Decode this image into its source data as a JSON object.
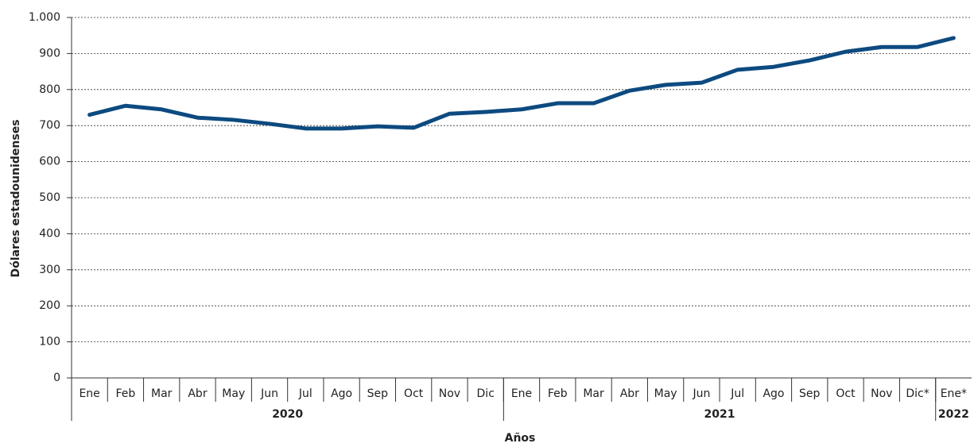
{
  "chart_data": {
    "type": "line",
    "y_label": "Dólares estadounidenses",
    "x_label": "Años",
    "categories": [
      "Ene",
      "Feb",
      "Mar",
      "Abr",
      "May",
      "Jun",
      "Jul",
      "Ago",
      "Sep",
      "Oct",
      "Nov",
      "Dic",
      "Ene",
      "Feb",
      "Mar",
      "Abr",
      "May",
      "Jun",
      "Jul",
      "Ago",
      "Sep",
      "Oct",
      "Nov",
      "Dic*",
      "Ene*"
    ],
    "years": [
      "2020",
      "2021",
      "2022"
    ],
    "series": [
      {
        "color": "#0d4a80",
        "values": [
          730,
          755,
          745,
          722,
          716,
          705,
          692,
          692,
          698,
          694,
          733,
          738,
          745,
          762,
          762,
          797,
          813,
          819,
          855,
          863,
          881,
          905,
          918,
          918,
          943
        ]
      }
    ],
    "ylim": [
      0,
      1000
    ],
    "yticks": [
      0,
      100,
      200,
      300,
      400,
      500,
      600,
      700,
      800,
      900,
      {
        "value": 1000,
        "label": "1.000"
      }
    ],
    "grid": true
  }
}
